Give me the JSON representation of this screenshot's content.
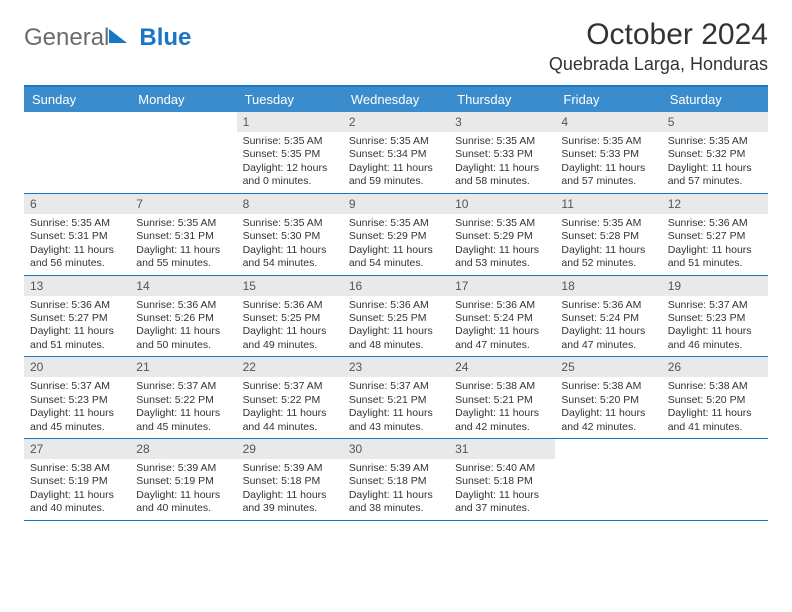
{
  "logo": {
    "general": "General",
    "blue": "Blue"
  },
  "header": {
    "title": "October 2024",
    "location": "Quebrada Larga, Honduras"
  },
  "style": {
    "accent": "#1976c5",
    "header_bg": "#3b8ccc",
    "header_fg": "#ffffff",
    "daynum_bg": "#e9e9e9",
    "page_bg": "#ffffff",
    "text": "#333333"
  },
  "dow": [
    "Sunday",
    "Monday",
    "Tuesday",
    "Wednesday",
    "Thursday",
    "Friday",
    "Saturday"
  ],
  "weeks": [
    [
      null,
      null,
      {
        "n": "1",
        "sr": "Sunrise: 5:35 AM",
        "ss": "Sunset: 5:35 PM",
        "dl": "Daylight: 12 hours and 0 minutes."
      },
      {
        "n": "2",
        "sr": "Sunrise: 5:35 AM",
        "ss": "Sunset: 5:34 PM",
        "dl": "Daylight: 11 hours and 59 minutes."
      },
      {
        "n": "3",
        "sr": "Sunrise: 5:35 AM",
        "ss": "Sunset: 5:33 PM",
        "dl": "Daylight: 11 hours and 58 minutes."
      },
      {
        "n": "4",
        "sr": "Sunrise: 5:35 AM",
        "ss": "Sunset: 5:33 PM",
        "dl": "Daylight: 11 hours and 57 minutes."
      },
      {
        "n": "5",
        "sr": "Sunrise: 5:35 AM",
        "ss": "Sunset: 5:32 PM",
        "dl": "Daylight: 11 hours and 57 minutes."
      }
    ],
    [
      {
        "n": "6",
        "sr": "Sunrise: 5:35 AM",
        "ss": "Sunset: 5:31 PM",
        "dl": "Daylight: 11 hours and 56 minutes."
      },
      {
        "n": "7",
        "sr": "Sunrise: 5:35 AM",
        "ss": "Sunset: 5:31 PM",
        "dl": "Daylight: 11 hours and 55 minutes."
      },
      {
        "n": "8",
        "sr": "Sunrise: 5:35 AM",
        "ss": "Sunset: 5:30 PM",
        "dl": "Daylight: 11 hours and 54 minutes."
      },
      {
        "n": "9",
        "sr": "Sunrise: 5:35 AM",
        "ss": "Sunset: 5:29 PM",
        "dl": "Daylight: 11 hours and 54 minutes."
      },
      {
        "n": "10",
        "sr": "Sunrise: 5:35 AM",
        "ss": "Sunset: 5:29 PM",
        "dl": "Daylight: 11 hours and 53 minutes."
      },
      {
        "n": "11",
        "sr": "Sunrise: 5:35 AM",
        "ss": "Sunset: 5:28 PM",
        "dl": "Daylight: 11 hours and 52 minutes."
      },
      {
        "n": "12",
        "sr": "Sunrise: 5:36 AM",
        "ss": "Sunset: 5:27 PM",
        "dl": "Daylight: 11 hours and 51 minutes."
      }
    ],
    [
      {
        "n": "13",
        "sr": "Sunrise: 5:36 AM",
        "ss": "Sunset: 5:27 PM",
        "dl": "Daylight: 11 hours and 51 minutes."
      },
      {
        "n": "14",
        "sr": "Sunrise: 5:36 AM",
        "ss": "Sunset: 5:26 PM",
        "dl": "Daylight: 11 hours and 50 minutes."
      },
      {
        "n": "15",
        "sr": "Sunrise: 5:36 AM",
        "ss": "Sunset: 5:25 PM",
        "dl": "Daylight: 11 hours and 49 minutes."
      },
      {
        "n": "16",
        "sr": "Sunrise: 5:36 AM",
        "ss": "Sunset: 5:25 PM",
        "dl": "Daylight: 11 hours and 48 minutes."
      },
      {
        "n": "17",
        "sr": "Sunrise: 5:36 AM",
        "ss": "Sunset: 5:24 PM",
        "dl": "Daylight: 11 hours and 47 minutes."
      },
      {
        "n": "18",
        "sr": "Sunrise: 5:36 AM",
        "ss": "Sunset: 5:24 PM",
        "dl": "Daylight: 11 hours and 47 minutes."
      },
      {
        "n": "19",
        "sr": "Sunrise: 5:37 AM",
        "ss": "Sunset: 5:23 PM",
        "dl": "Daylight: 11 hours and 46 minutes."
      }
    ],
    [
      {
        "n": "20",
        "sr": "Sunrise: 5:37 AM",
        "ss": "Sunset: 5:23 PM",
        "dl": "Daylight: 11 hours and 45 minutes."
      },
      {
        "n": "21",
        "sr": "Sunrise: 5:37 AM",
        "ss": "Sunset: 5:22 PM",
        "dl": "Daylight: 11 hours and 45 minutes."
      },
      {
        "n": "22",
        "sr": "Sunrise: 5:37 AM",
        "ss": "Sunset: 5:22 PM",
        "dl": "Daylight: 11 hours and 44 minutes."
      },
      {
        "n": "23",
        "sr": "Sunrise: 5:37 AM",
        "ss": "Sunset: 5:21 PM",
        "dl": "Daylight: 11 hours and 43 minutes."
      },
      {
        "n": "24",
        "sr": "Sunrise: 5:38 AM",
        "ss": "Sunset: 5:21 PM",
        "dl": "Daylight: 11 hours and 42 minutes."
      },
      {
        "n": "25",
        "sr": "Sunrise: 5:38 AM",
        "ss": "Sunset: 5:20 PM",
        "dl": "Daylight: 11 hours and 42 minutes."
      },
      {
        "n": "26",
        "sr": "Sunrise: 5:38 AM",
        "ss": "Sunset: 5:20 PM",
        "dl": "Daylight: 11 hours and 41 minutes."
      }
    ],
    [
      {
        "n": "27",
        "sr": "Sunrise: 5:38 AM",
        "ss": "Sunset: 5:19 PM",
        "dl": "Daylight: 11 hours and 40 minutes."
      },
      {
        "n": "28",
        "sr": "Sunrise: 5:39 AM",
        "ss": "Sunset: 5:19 PM",
        "dl": "Daylight: 11 hours and 40 minutes."
      },
      {
        "n": "29",
        "sr": "Sunrise: 5:39 AM",
        "ss": "Sunset: 5:18 PM",
        "dl": "Daylight: 11 hours and 39 minutes."
      },
      {
        "n": "30",
        "sr": "Sunrise: 5:39 AM",
        "ss": "Sunset: 5:18 PM",
        "dl": "Daylight: 11 hours and 38 minutes."
      },
      {
        "n": "31",
        "sr": "Sunrise: 5:40 AM",
        "ss": "Sunset: 5:18 PM",
        "dl": "Daylight: 11 hours and 37 minutes."
      },
      null,
      null
    ]
  ]
}
